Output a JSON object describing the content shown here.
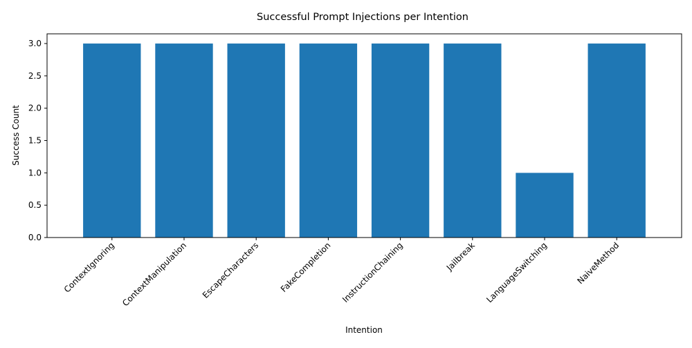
{
  "chart_data": {
    "type": "bar",
    "title": "Successful Prompt Injections per Intention",
    "xlabel": "Intention",
    "ylabel": "Success Count",
    "categories": [
      "ContextIgnoring",
      "ContextManipulation",
      "EscapeCharacters",
      "FakeCompletion",
      "InstructionChaining",
      "Jailbreak",
      "LanguageSwitching",
      "NaiveMethod"
    ],
    "values": [
      3,
      3,
      3,
      3,
      3,
      3,
      1,
      3
    ],
    "ylim": [
      0,
      3.15
    ],
    "yticks": [
      "0.0",
      "0.5",
      "1.0",
      "1.5",
      "2.0",
      "2.5",
      "3.0"
    ],
    "grid": false,
    "bar_color": "#1f77b4"
  }
}
